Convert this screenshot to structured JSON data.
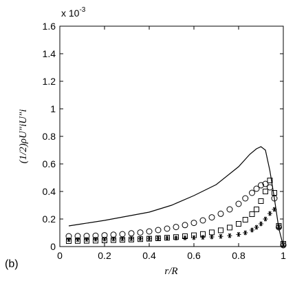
{
  "chart_data": {
    "type": "line",
    "panel_label": "(b)",
    "scale_label": "x 10",
    "scale_exponent": "-3",
    "xlabel": "r/R",
    "ylabel": "(1/2)ρU″iU″i",
    "xlim": [
      0,
      1
    ],
    "ylim": [
      0,
      1.6
    ],
    "xticks": [
      "0",
      "0.2",
      "0.4",
      "0.6",
      "0.8",
      "1"
    ],
    "yticks": [
      "0",
      "0.2",
      "0.4",
      "0.6",
      "0.8",
      "1",
      "1.2",
      "1.4",
      "1.6"
    ],
    "grid": false,
    "series": [
      {
        "marker": "line",
        "x": [
          0.04,
          0.1,
          0.2,
          0.3,
          0.4,
          0.5,
          0.6,
          0.7,
          0.8,
          0.85,
          0.88,
          0.9,
          0.92,
          0.94,
          0.96,
          0.98,
          1.0
        ],
        "y": [
          0.15,
          0.165,
          0.19,
          0.22,
          0.25,
          0.3,
          0.37,
          0.45,
          0.58,
          0.67,
          0.71,
          0.725,
          0.7,
          0.55,
          0.35,
          0.13,
          0.005
        ]
      },
      {
        "marker": "circle",
        "x": [
          0.04,
          0.08,
          0.12,
          0.16,
          0.2,
          0.24,
          0.28,
          0.32,
          0.36,
          0.4,
          0.44,
          0.48,
          0.52,
          0.56,
          0.6,
          0.64,
          0.68,
          0.72,
          0.76,
          0.8,
          0.83,
          0.86,
          0.88,
          0.9,
          0.92,
          0.94,
          0.96,
          0.98,
          1.0
        ],
        "y": [
          0.075,
          0.076,
          0.077,
          0.079,
          0.082,
          0.086,
          0.09,
          0.096,
          0.102,
          0.11,
          0.12,
          0.13,
          0.142,
          0.156,
          0.172,
          0.19,
          0.212,
          0.238,
          0.27,
          0.31,
          0.35,
          0.39,
          0.42,
          0.445,
          0.455,
          0.43,
          0.35,
          0.14,
          0.01
        ]
      },
      {
        "marker": "square",
        "x": [
          0.04,
          0.08,
          0.12,
          0.16,
          0.2,
          0.24,
          0.28,
          0.32,
          0.36,
          0.4,
          0.44,
          0.48,
          0.52,
          0.56,
          0.6,
          0.64,
          0.68,
          0.72,
          0.76,
          0.8,
          0.83,
          0.86,
          0.88,
          0.9,
          0.92,
          0.94,
          0.96,
          0.98,
          1.0
        ],
        "y": [
          0.04,
          0.041,
          0.042,
          0.043,
          0.045,
          0.047,
          0.049,
          0.051,
          0.054,
          0.057,
          0.06,
          0.064,
          0.069,
          0.075,
          0.082,
          0.091,
          0.103,
          0.118,
          0.138,
          0.165,
          0.195,
          0.235,
          0.27,
          0.33,
          0.4,
          0.48,
          0.39,
          0.15,
          0.02
        ]
      },
      {
        "marker": "star",
        "x": [
          0.04,
          0.08,
          0.12,
          0.16,
          0.2,
          0.24,
          0.28,
          0.32,
          0.36,
          0.4,
          0.44,
          0.48,
          0.52,
          0.56,
          0.6,
          0.64,
          0.68,
          0.72,
          0.76,
          0.8,
          0.83,
          0.86,
          0.88,
          0.9,
          0.92,
          0.94,
          0.96,
          0.98,
          1.0
        ],
        "y": [
          0.05,
          0.051,
          0.052,
          0.053,
          0.054,
          0.055,
          0.056,
          0.057,
          0.058,
          0.059,
          0.06,
          0.061,
          0.062,
          0.063,
          0.065,
          0.067,
          0.07,
          0.074,
          0.079,
          0.088,
          0.1,
          0.12,
          0.14,
          0.165,
          0.2,
          0.24,
          0.27,
          0.14,
          0.01
        ]
      }
    ]
  }
}
